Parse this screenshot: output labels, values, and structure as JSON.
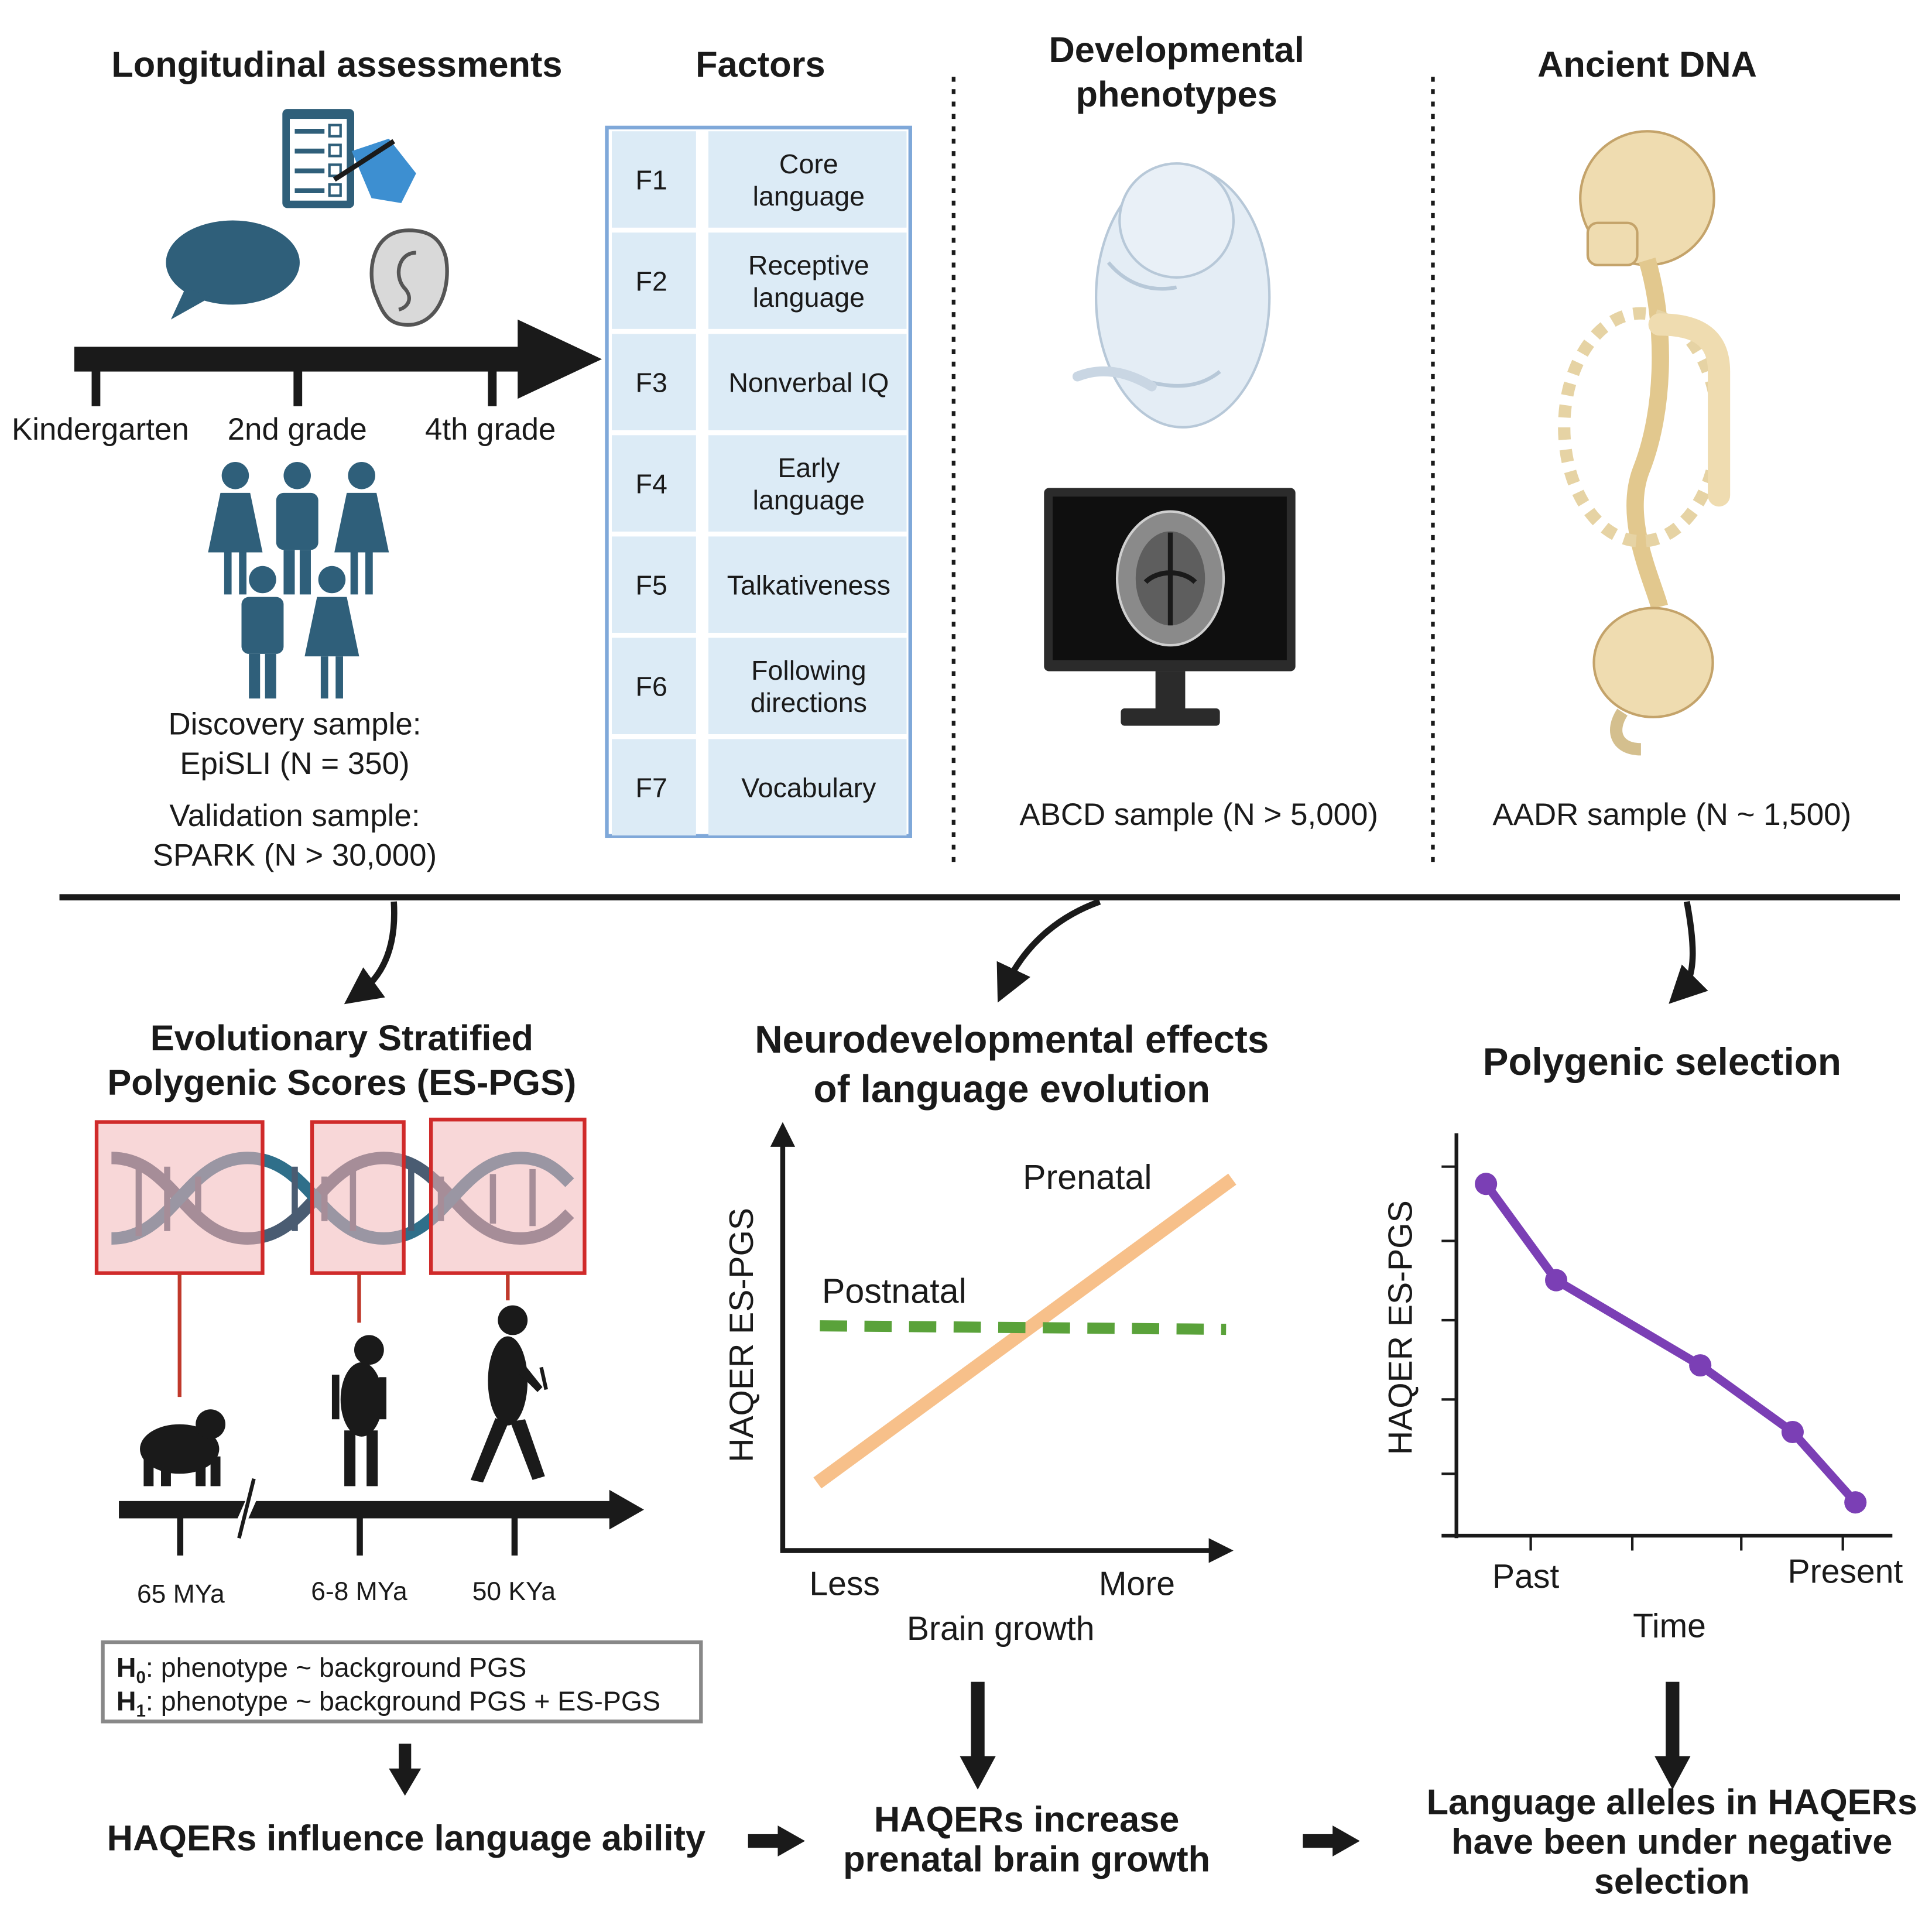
{
  "sections": {
    "longitudinal": "Longitudinal assessments",
    "factors": "Factors",
    "developmental": [
      "Developmental",
      "phenotypes"
    ],
    "ancient": "Ancient DNA"
  },
  "timeline": [
    "Kindergarten",
    "2nd grade",
    "4th grade"
  ],
  "discovery": [
    "Discovery sample:",
    "EpiSLI (N = 350)"
  ],
  "validation": [
    "Validation sample:",
    "SPARK (N > 30,000)"
  ],
  "factors": [
    {
      "code": "F1",
      "label": [
        "Core",
        "language"
      ]
    },
    {
      "code": "F2",
      "label": [
        "Receptive",
        "language"
      ]
    },
    {
      "code": "F3",
      "label": [
        "Nonverbal IQ"
      ]
    },
    {
      "code": "F4",
      "label": [
        "Early",
        "language"
      ]
    },
    {
      "code": "F5",
      "label": [
        "Talkativeness"
      ]
    },
    {
      "code": "F6",
      "label": [
        "Following",
        "directions"
      ]
    },
    {
      "code": "F7",
      "label": [
        "Vocabulary"
      ]
    }
  ],
  "abcd": "ABCD sample (N > 5,000)",
  "aadr": "AADR sample (N ~ 1,500)",
  "es_pgs": {
    "title": [
      "Evolutionary Stratified",
      "Polygenic Scores (ES-PGS)"
    ],
    "ticks": [
      "65 MYa",
      "6-8 MYa",
      "50 KYa"
    ],
    "h0": {
      "H": "H",
      "sub": "0",
      "rest": ": phenotype ~ background PGS"
    },
    "h1": {
      "H": "H",
      "sub": "1",
      "rest": ": phenotype ~ background PGS + ES-PGS"
    },
    "conclusion": "HAQERs influence language ability"
  },
  "neuro": {
    "title": [
      "Neurodevelopmental effects",
      "of language evolution"
    ],
    "conclusion": [
      "HAQERs increase",
      "prenatal brain growth"
    ],
    "chart_data": {
      "type": "line",
      "title": "",
      "ylabel": "HAQER ES-PGS",
      "xlabel": "Brain growth",
      "categories": [
        "Less",
        "More"
      ],
      "series": [
        {
          "name": "Prenatal",
          "color": "#f7c08a",
          "style": "solid",
          "values": [
            0.08,
            0.95
          ]
        },
        {
          "name": "Postnatal",
          "color": "#5aa23a",
          "style": "dashed",
          "values": [
            0.53,
            0.52
          ]
        }
      ],
      "ylim": [
        0,
        1
      ],
      "grid": false
    }
  },
  "selection": {
    "title": "Polygenic selection",
    "conclusion": [
      "Language alleles in HAQERs",
      "have been under negative",
      "selection"
    ],
    "chart_data": {
      "type": "line",
      "title": "",
      "ylabel": "HAQER ES-PGS",
      "xlabel": "Time",
      "tick_labels": [
        "Past",
        "Present"
      ],
      "series": [
        {
          "color": "#7b3fb5",
          "x": [
            0.08,
            0.27,
            0.66,
            0.91,
            1.08
          ],
          "values": [
            0.95,
            0.69,
            0.46,
            0.28,
            0.09
          ]
        }
      ],
      "xlim": [
        0,
        1.18
      ],
      "ylim": [
        0,
        1
      ],
      "grid": false
    }
  }
}
